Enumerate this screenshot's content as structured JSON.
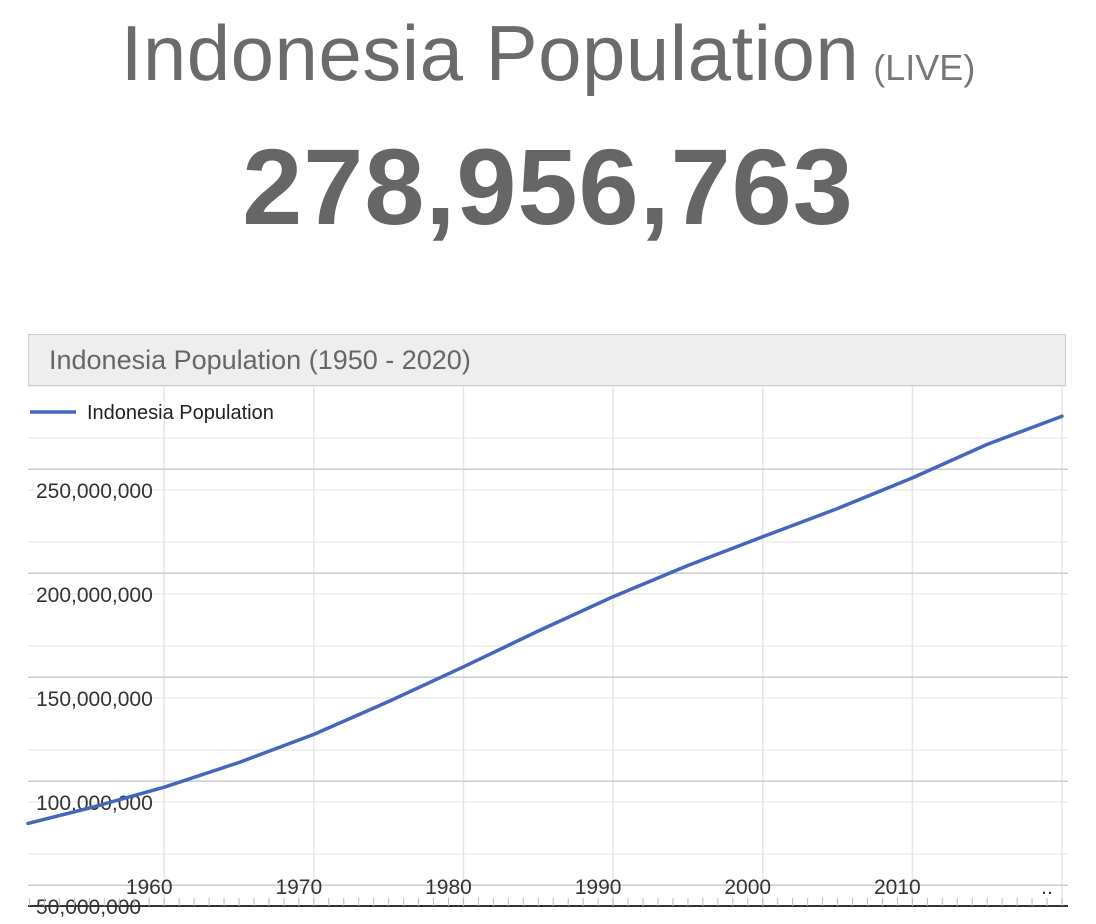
{
  "header": {
    "title": "Indonesia Population",
    "live_label": "(LIVE)",
    "counter": "278,956,763"
  },
  "chart_header": {
    "title": "Indonesia Population (1950 - 2020)"
  },
  "colors": {
    "line": "#4466bb",
    "grid_major": "#cccccc",
    "grid_minor": "#e6e6e6",
    "header_bg": "#eeeeee"
  },
  "chart_data": {
    "type": "line",
    "title": "Indonesia Population (1950 - 2020)",
    "xlabel": "",
    "ylabel": "",
    "x_tick_labels": [
      "1960",
      "1970",
      "1980",
      "1990",
      "2000",
      "2010",
      ".."
    ],
    "y_tick_labels": [
      "250,000,000",
      "200,000,000",
      "150,000,000",
      "100,000,000",
      "50,000,000"
    ],
    "y_ticks": [
      250000000,
      200000000,
      150000000,
      100000000,
      50000000
    ],
    "x_ticks": [
      1960,
      1970,
      1980,
      1990,
      2000,
      2010,
      2020
    ],
    "xlim": [
      1950.9,
      2020.4
    ],
    "ylim": [
      40000000,
      290000000
    ],
    "grid": true,
    "legend_position": "top-left",
    "series": [
      {
        "name": "Indonesia Population",
        "x": [
          1950.9,
          1955,
          1960,
          1965,
          1970,
          1975,
          1980,
          1985,
          1990,
          1995,
          2000,
          2005,
          2010,
          2015,
          2020
        ],
        "values": [
          79700000,
          87100000,
          97100000,
          109000000,
          122500000,
          138300000,
          155000000,
          172200000,
          188700000,
          203700000,
          217500000,
          231100000,
          245800000,
          261900000,
          275500000
        ]
      }
    ]
  }
}
